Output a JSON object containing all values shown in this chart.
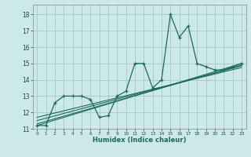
{
  "xlabel": "Humidex (Indice chaleur)",
  "bg_color": "#cce8e8",
  "grid_color": "#aacaca",
  "line_color": "#1a6b5a",
  "xlim": [
    -0.5,
    23.5
  ],
  "ylim": [
    11,
    18.6
  ],
  "yticks": [
    11,
    12,
    13,
    14,
    15,
    16,
    17,
    18
  ],
  "xticks": [
    0,
    1,
    2,
    3,
    4,
    5,
    6,
    7,
    8,
    9,
    10,
    11,
    12,
    13,
    14,
    15,
    16,
    17,
    18,
    19,
    20,
    21,
    22,
    23
  ],
  "series_main": {
    "x": [
      0,
      1,
      2,
      3,
      4,
      5,
      6,
      7,
      8,
      9,
      10,
      11,
      12,
      13,
      14,
      15,
      16,
      17,
      18,
      19,
      20,
      21,
      22,
      23
    ],
    "y": [
      11.2,
      11.2,
      12.6,
      13.0,
      13.0,
      13.0,
      12.8,
      11.7,
      11.8,
      13.0,
      13.3,
      15.0,
      15.0,
      13.5,
      14.0,
      18.0,
      16.6,
      17.3,
      15.0,
      14.8,
      14.6,
      14.6,
      14.8,
      15.0
    ]
  },
  "regression_lines": [
    {
      "x": [
        0,
        23
      ],
      "y": [
        11.2,
        15.0
      ]
    },
    {
      "x": [
        0,
        23
      ],
      "y": [
        11.3,
        14.9
      ]
    },
    {
      "x": [
        0,
        23
      ],
      "y": [
        11.5,
        14.85
      ]
    },
    {
      "x": [
        0,
        23
      ],
      "y": [
        11.7,
        14.75
      ]
    }
  ]
}
